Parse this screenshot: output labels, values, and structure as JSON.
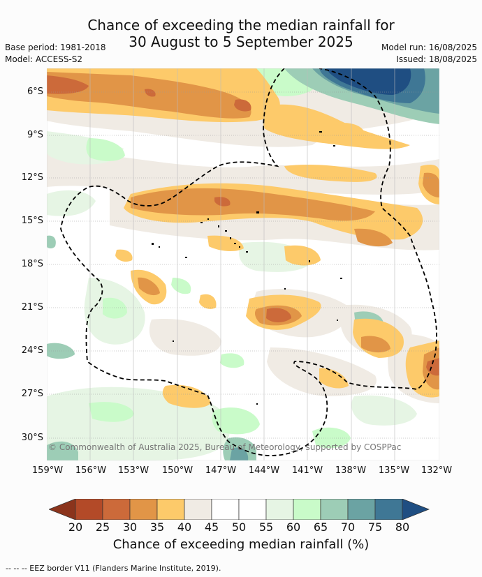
{
  "title": {
    "line1": "Chance of exceeding the median rainfall for",
    "line2": "30 August to 5 September 2025"
  },
  "meta": {
    "base_period": "Base period: 1981-2018",
    "model": "Model: ACCESS-S2",
    "model_run": "Model run: 16/08/2025",
    "issued": "Issued: 18/08/2025"
  },
  "map": {
    "lat_labels": [
      "6°S",
      "9°S",
      "12°S",
      "15°S",
      "18°S",
      "21°S",
      "24°S",
      "27°S",
      "30°S"
    ],
    "lon_labels": [
      "159°W",
      "156°W",
      "153°W",
      "150°W",
      "147°W",
      "144°W",
      "141°W",
      "138°W",
      "135°W",
      "132°W"
    ],
    "copyright": "© Commonwealth of Australia 2025, Bureau of Meteorology, supported by COSPPac",
    "colors": {
      "c20": "#b34a28",
      "c25": "#cc6a3a",
      "c30": "#e19547",
      "c35": "#fdca6a",
      "c45": "#f0ebe4",
      "c55": "#ffffff",
      "c60": "#e6f5e4",
      "c65": "#c9fbc9",
      "c70": "#9dcdb6",
      "c75": "#6ba3a3",
      "c80": "#3f7795",
      "c85": "#1f4e82"
    }
  },
  "colorbar": {
    "ticks": [
      "20",
      "25",
      "30",
      "35",
      "40",
      "45",
      "50",
      "55",
      "60",
      "65",
      "70",
      "75",
      "80"
    ],
    "colors": [
      "#8b341c",
      "#b34a28",
      "#cc6a3a",
      "#e19547",
      "#fdca6a",
      "#f0ebe4",
      "#ffffff",
      "#ffffff",
      "#e6f5e4",
      "#c9fbc9",
      "#9dcdb6",
      "#6ba3a3",
      "#3f7795",
      "#1f4e82"
    ],
    "label": "Chance of exceeding median rainfall (%)"
  },
  "footer": "--  --  -- EEZ border V11 (Flanders Marine Institute, 2019)."
}
